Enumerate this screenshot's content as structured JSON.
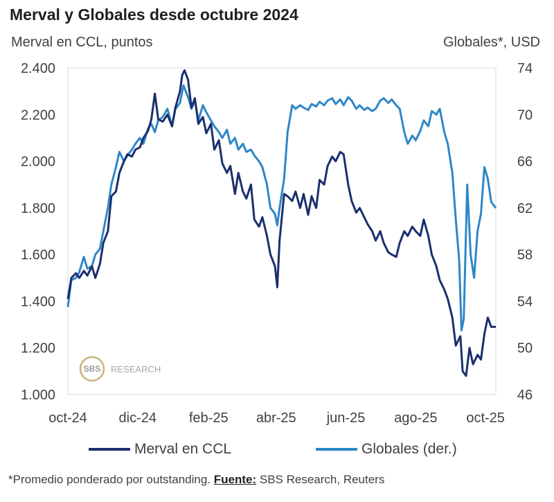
{
  "chart_data": {
    "type": "line",
    "title": "Merval y Globales desde octubre 2024",
    "ylabel_left": "Merval en CCL, puntos",
    "ylabel_right": "Globales*, USD",
    "xlim": [
      "2024-10-01",
      "2025-10-10"
    ],
    "ylim_left": [
      1000,
      2400
    ],
    "ylim_right": [
      46,
      74
    ],
    "x_ticks": [
      {
        "date": "2024-10-01",
        "label": "oct-24"
      },
      {
        "date": "2024-12-01",
        "label": "dic-24"
      },
      {
        "date": "2025-02-01",
        "label": "feb-25"
      },
      {
        "date": "2025-04-01",
        "label": "abr-25"
      },
      {
        "date": "2025-06-01",
        "label": "jun-25"
      },
      {
        "date": "2025-08-01",
        "label": "ago-25"
      },
      {
        "date": "2025-10-01",
        "label": "oct-25"
      }
    ],
    "y_ticks_left": [
      "1.000",
      "1.200",
      "1.400",
      "1.600",
      "1.800",
      "2.000",
      "2.200",
      "2.400"
    ],
    "y_ticks_right": [
      "46",
      "50",
      "54",
      "58",
      "62",
      "66",
      "70",
      "74"
    ],
    "grid": false,
    "legend": "bottom",
    "series": [
      {
        "name": "Merval en CCL",
        "axis": "left",
        "color": "#1a2e6e",
        "points": [
          [
            "2024-10-01",
            1410
          ],
          [
            "2024-10-04",
            1500
          ],
          [
            "2024-10-08",
            1520
          ],
          [
            "2024-10-11",
            1500
          ],
          [
            "2024-10-15",
            1530
          ],
          [
            "2024-10-18",
            1510
          ],
          [
            "2024-10-22",
            1550
          ],
          [
            "2024-10-25",
            1500
          ],
          [
            "2024-10-29",
            1560
          ],
          [
            "2024-11-01",
            1650
          ],
          [
            "2024-11-05",
            1700
          ],
          [
            "2024-11-08",
            1850
          ],
          [
            "2024-11-12",
            1870
          ],
          [
            "2024-11-15",
            1950
          ],
          [
            "2024-11-19",
            2000
          ],
          [
            "2024-11-22",
            2030
          ],
          [
            "2024-11-26",
            2020
          ],
          [
            "2024-11-29",
            2050
          ],
          [
            "2024-12-03",
            2060
          ],
          [
            "2024-12-06",
            2100
          ],
          [
            "2024-12-10",
            2130
          ],
          [
            "2024-12-13",
            2180
          ],
          [
            "2024-12-16",
            2290
          ],
          [
            "2024-12-19",
            2180
          ],
          [
            "2024-12-23",
            2170
          ],
          [
            "2024-12-27",
            2200
          ],
          [
            "2024-12-31",
            2150
          ],
          [
            "2025-01-03",
            2230
          ],
          [
            "2025-01-07",
            2300
          ],
          [
            "2025-01-09",
            2370
          ],
          [
            "2025-01-11",
            2390
          ],
          [
            "2025-01-14",
            2350
          ],
          [
            "2025-01-17",
            2230
          ],
          [
            "2025-01-20",
            2270
          ],
          [
            "2025-01-23",
            2160
          ],
          [
            "2025-01-27",
            2190
          ],
          [
            "2025-01-30",
            2120
          ],
          [
            "2025-02-03",
            2160
          ],
          [
            "2025-02-06",
            2050
          ],
          [
            "2025-02-10",
            2090
          ],
          [
            "2025-02-13",
            1990
          ],
          [
            "2025-02-17",
            1950
          ],
          [
            "2025-02-20",
            1980
          ],
          [
            "2025-02-24",
            1860
          ],
          [
            "2025-02-27",
            1950
          ],
          [
            "2025-03-03",
            1870
          ],
          [
            "2025-03-06",
            1840
          ],
          [
            "2025-03-10",
            1900
          ],
          [
            "2025-03-13",
            1750
          ],
          [
            "2025-03-17",
            1720
          ],
          [
            "2025-03-20",
            1760
          ],
          [
            "2025-03-24",
            1680
          ],
          [
            "2025-03-27",
            1600
          ],
          [
            "2025-03-31",
            1550
          ],
          [
            "2025-04-02",
            1460
          ],
          [
            "2025-04-04",
            1660
          ],
          [
            "2025-04-08",
            1860
          ],
          [
            "2025-04-11",
            1850
          ],
          [
            "2025-04-15",
            1830
          ],
          [
            "2025-04-18",
            1870
          ],
          [
            "2025-04-22",
            1800
          ],
          [
            "2025-04-25",
            1860
          ],
          [
            "2025-04-29",
            1770
          ],
          [
            "2025-05-02",
            1850
          ],
          [
            "2025-05-06",
            1800
          ],
          [
            "2025-05-09",
            1920
          ],
          [
            "2025-05-13",
            1900
          ],
          [
            "2025-05-16",
            1980
          ],
          [
            "2025-05-20",
            2020
          ],
          [
            "2025-05-23",
            2000
          ],
          [
            "2025-05-27",
            2040
          ],
          [
            "2025-05-30",
            2030
          ],
          [
            "2025-06-03",
            1900
          ],
          [
            "2025-06-06",
            1830
          ],
          [
            "2025-06-10",
            1780
          ],
          [
            "2025-06-13",
            1800
          ],
          [
            "2025-06-17",
            1760
          ],
          [
            "2025-06-20",
            1730
          ],
          [
            "2025-06-24",
            1700
          ],
          [
            "2025-06-27",
            1660
          ],
          [
            "2025-07-01",
            1700
          ],
          [
            "2025-07-04",
            1650
          ],
          [
            "2025-07-08",
            1610
          ],
          [
            "2025-07-11",
            1600
          ],
          [
            "2025-07-15",
            1590
          ],
          [
            "2025-07-18",
            1650
          ],
          [
            "2025-07-22",
            1700
          ],
          [
            "2025-07-25",
            1680
          ],
          [
            "2025-07-29",
            1720
          ],
          [
            "2025-08-01",
            1700
          ],
          [
            "2025-08-05",
            1680
          ],
          [
            "2025-08-08",
            1750
          ],
          [
            "2025-08-12",
            1680
          ],
          [
            "2025-08-15",
            1600
          ],
          [
            "2025-08-19",
            1550
          ],
          [
            "2025-08-22",
            1490
          ],
          [
            "2025-08-26",
            1450
          ],
          [
            "2025-08-29",
            1410
          ],
          [
            "2025-09-02",
            1330
          ],
          [
            "2025-09-05",
            1210
          ],
          [
            "2025-09-09",
            1250
          ],
          [
            "2025-09-11",
            1100
          ],
          [
            "2025-09-14",
            1080
          ],
          [
            "2025-09-17",
            1200
          ],
          [
            "2025-09-20",
            1130
          ],
          [
            "2025-09-24",
            1170
          ],
          [
            "2025-09-27",
            1150
          ],
          [
            "2025-09-30",
            1260
          ],
          [
            "2025-10-03",
            1330
          ],
          [
            "2025-10-06",
            1290
          ],
          [
            "2025-10-10",
            1290
          ]
        ]
      },
      {
        "name": "Globales (der.)",
        "axis": "right",
        "color": "#2d86c7",
        "points": [
          [
            "2024-10-01",
            53.5
          ],
          [
            "2024-10-04",
            55.8
          ],
          [
            "2024-10-08",
            56.0
          ],
          [
            "2024-10-11",
            56.5
          ],
          [
            "2024-10-15",
            57.8
          ],
          [
            "2024-10-18",
            56.8
          ],
          [
            "2024-10-22",
            57.0
          ],
          [
            "2024-10-25",
            58.0
          ],
          [
            "2024-10-29",
            58.5
          ],
          [
            "2024-11-01",
            60.0
          ],
          [
            "2024-11-05",
            62.0
          ],
          [
            "2024-11-08",
            64.0
          ],
          [
            "2024-11-12",
            65.5
          ],
          [
            "2024-11-15",
            66.8
          ],
          [
            "2024-11-19",
            66.0
          ],
          [
            "2024-11-22",
            66.5
          ],
          [
            "2024-11-26",
            67.0
          ],
          [
            "2024-11-29",
            67.5
          ],
          [
            "2024-12-03",
            68.0
          ],
          [
            "2024-12-06",
            67.5
          ],
          [
            "2024-12-10",
            68.8
          ],
          [
            "2024-12-13",
            69.2
          ],
          [
            "2024-12-16",
            68.5
          ],
          [
            "2024-12-19",
            69.5
          ],
          [
            "2024-12-23",
            69.8
          ],
          [
            "2024-12-27",
            70.5
          ],
          [
            "2024-12-31",
            69.0
          ],
          [
            "2025-01-03",
            70.5
          ],
          [
            "2025-01-07",
            71.0
          ],
          [
            "2025-01-10",
            72.5
          ],
          [
            "2025-01-14",
            71.5
          ],
          [
            "2025-01-17",
            70.5
          ],
          [
            "2025-01-20",
            71.2
          ],
          [
            "2025-01-23",
            69.5
          ],
          [
            "2025-01-27",
            70.8
          ],
          [
            "2025-01-30",
            70.2
          ],
          [
            "2025-02-03",
            69.5
          ],
          [
            "2025-02-06",
            69.0
          ],
          [
            "2025-02-10",
            68.5
          ],
          [
            "2025-02-13",
            68.0
          ],
          [
            "2025-02-17",
            68.7
          ],
          [
            "2025-02-20",
            67.5
          ],
          [
            "2025-02-24",
            68.0
          ],
          [
            "2025-02-27",
            67.0
          ],
          [
            "2025-03-03",
            67.5
          ],
          [
            "2025-03-06",
            66.8
          ],
          [
            "2025-03-10",
            67.0
          ],
          [
            "2025-03-13",
            66.5
          ],
          [
            "2025-03-17",
            66.0
          ],
          [
            "2025-03-20",
            65.5
          ],
          [
            "2025-03-24",
            64.0
          ],
          [
            "2025-03-27",
            62.0
          ],
          [
            "2025-03-31",
            61.5
          ],
          [
            "2025-04-02",
            60.5
          ],
          [
            "2025-04-04",
            62.0
          ],
          [
            "2025-04-08",
            64.5
          ],
          [
            "2025-04-11",
            68.5
          ],
          [
            "2025-04-15",
            70.8
          ],
          [
            "2025-04-18",
            70.5
          ],
          [
            "2025-04-22",
            70.8
          ],
          [
            "2025-04-25",
            70.6
          ],
          [
            "2025-04-29",
            70.4
          ],
          [
            "2025-05-02",
            70.9
          ],
          [
            "2025-05-06",
            70.7
          ],
          [
            "2025-05-09",
            71.1
          ],
          [
            "2025-05-13",
            70.8
          ],
          [
            "2025-05-16",
            71.2
          ],
          [
            "2025-05-20",
            71.4
          ],
          [
            "2025-05-23",
            70.9
          ],
          [
            "2025-05-27",
            71.3
          ],
          [
            "2025-05-30",
            70.8
          ],
          [
            "2025-06-03",
            71.5
          ],
          [
            "2025-06-06",
            71.2
          ],
          [
            "2025-06-10",
            70.5
          ],
          [
            "2025-06-13",
            70.8
          ],
          [
            "2025-06-17",
            70.4
          ],
          [
            "2025-06-20",
            70.6
          ],
          [
            "2025-06-24",
            70.3
          ],
          [
            "2025-06-27",
            70.5
          ],
          [
            "2025-07-01",
            71.2
          ],
          [
            "2025-07-04",
            71.4
          ],
          [
            "2025-07-08",
            71.0
          ],
          [
            "2025-07-11",
            71.3
          ],
          [
            "2025-07-15",
            70.8
          ],
          [
            "2025-07-18",
            70.5
          ],
          [
            "2025-07-22",
            68.5
          ],
          [
            "2025-07-25",
            67.5
          ],
          [
            "2025-07-29",
            68.2
          ],
          [
            "2025-08-01",
            67.8
          ],
          [
            "2025-08-05",
            68.6
          ],
          [
            "2025-08-08",
            69.5
          ],
          [
            "2025-08-12",
            69.0
          ],
          [
            "2025-08-15",
            70.3
          ],
          [
            "2025-08-19",
            70.0
          ],
          [
            "2025-08-22",
            70.5
          ],
          [
            "2025-08-26",
            68.5
          ],
          [
            "2025-08-29",
            67.5
          ],
          [
            "2025-09-02",
            65.0
          ],
          [
            "2025-09-05",
            61.0
          ],
          [
            "2025-09-08",
            57.5
          ],
          [
            "2025-09-10",
            51.5
          ],
          [
            "2025-09-12",
            52.5
          ],
          [
            "2025-09-15",
            64.0
          ],
          [
            "2025-09-18",
            58.0
          ],
          [
            "2025-09-21",
            56.0
          ],
          [
            "2025-09-24",
            60.0
          ],
          [
            "2025-09-27",
            61.5
          ],
          [
            "2025-09-30",
            65.5
          ],
          [
            "2025-10-03",
            64.5
          ],
          [
            "2025-10-06",
            62.5
          ],
          [
            "2025-10-10",
            62.0
          ]
        ]
      }
    ]
  },
  "watermark": {
    "logo_text": "SBS",
    "text": "RESEARCH"
  },
  "footnote": {
    "prefix": "*Promedio ponderado por outstanding. ",
    "source_label": "Fuente:",
    "source": " SBS Research, Reuters"
  }
}
